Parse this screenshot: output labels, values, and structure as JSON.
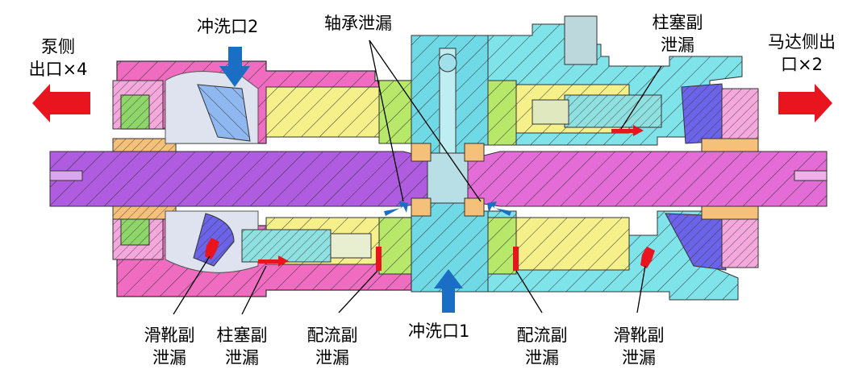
{
  "labels": {
    "pump_outlet_line1": "泵侧",
    "pump_outlet_line2": "出口×4",
    "flush_port_2": "冲洗口2",
    "bearing_leak": "轴承泄漏",
    "plunger_leak_top_line1": "柱塞副",
    "plunger_leak_top_line2": "泄漏",
    "motor_outlet_line1": "马达侧出",
    "motor_outlet_line2": "口×2",
    "slipper_leak_left_line1": "滑靴副",
    "slipper_leak_left_line2": "泄漏",
    "plunger_leak_bottom_line1": "柱塞副",
    "plunger_leak_bottom_line2": "泄漏",
    "port_plate_leak_left_line1": "配流副",
    "port_plate_leak_left_line2": "泄漏",
    "flush_port_1": "冲洗口1",
    "port_plate_leak_right_line1": "配流副",
    "port_plate_leak_right_line2": "泄漏",
    "slipper_leak_right_line1": "滑靴副",
    "slipper_leak_right_line2": "泄漏"
  },
  "colors": {
    "pump_housing": "#f06cc0",
    "motor_housing": "#7fe3ea",
    "shaft": "#b05ce0",
    "cylinder_block": "#f5f08a",
    "valve_plate": "#b7e86a",
    "center_block": "#6fd9e6",
    "swash_plate": "#6b63e8",
    "leak_arrow": "#e8141e",
    "flush_arrow": "#1a6fc4",
    "outlet_arrow": "#e8141e"
  }
}
